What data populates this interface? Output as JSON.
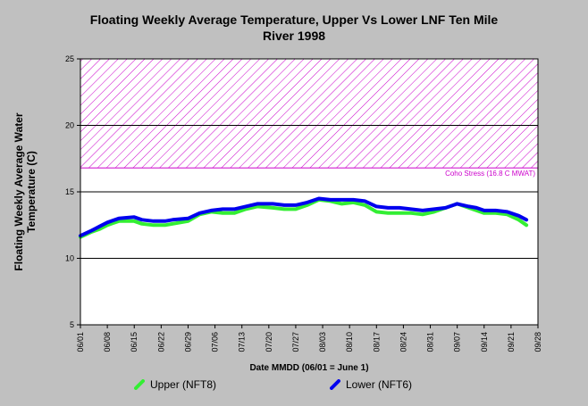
{
  "chart_data": {
    "type": "line",
    "title_line1": "Floating Weekly Average Temperature, Upper Vs Lower LNF Ten Mile",
    "title_line2": "River 1998",
    "ylabel": "Floating Weekly Average Water\nTemperature (C)",
    "xlabel": "Date MMDD (06/01 = June 1)",
    "ylim": [
      5,
      25
    ],
    "yticks": [
      "5",
      "10",
      "15",
      "20",
      "25"
    ],
    "xticks": [
      "06/01",
      "06/08",
      "06/15",
      "06/22",
      "06/29",
      "07/06",
      "07/13",
      "07/20",
      "07/27",
      "08/03",
      "08/10",
      "08/17",
      "08/24",
      "08/31",
      "09/07",
      "09/14",
      "09/21",
      "09/28"
    ],
    "xrange_days": [
      0,
      119
    ],
    "threshold": {
      "value": 16.8,
      "label": "Coho Stress (16.8 C MWAT)",
      "color": "#cc00cc"
    },
    "series": [
      {
        "name": "Upper (NFT8)",
        "color": "#33ee33",
        "x": [
          0,
          3,
          5,
          7,
          10,
          14,
          16,
          19,
          22,
          24,
          28,
          31,
          34,
          37,
          40,
          43,
          46,
          50,
          53,
          56,
          59,
          62,
          65,
          68,
          71,
          74,
          77,
          80,
          83,
          86,
          89,
          92,
          95,
          98,
          101,
          103,
          105,
          108,
          111,
          114,
          116
        ],
        "y": [
          11.6,
          12.0,
          12.2,
          12.5,
          12.8,
          12.8,
          12.6,
          12.5,
          12.5,
          12.6,
          12.8,
          13.3,
          13.5,
          13.4,
          13.4,
          13.7,
          13.9,
          13.8,
          13.7,
          13.7,
          14.0,
          14.4,
          14.3,
          14.1,
          14.2,
          14.0,
          13.5,
          13.4,
          13.4,
          13.4,
          13.3,
          13.5,
          13.8,
          14.1,
          13.8,
          13.6,
          13.4,
          13.4,
          13.3,
          12.9,
          12.5
        ]
      },
      {
        "name": "Lower (NFT6)",
        "color": "#0000ee",
        "x": [
          0,
          3,
          5,
          7,
          10,
          14,
          16,
          19,
          22,
          24,
          28,
          31,
          34,
          37,
          40,
          43,
          46,
          50,
          53,
          56,
          59,
          62,
          65,
          68,
          71,
          74,
          77,
          80,
          83,
          86,
          89,
          92,
          95,
          98,
          101,
          103,
          105,
          108,
          111,
          114,
          116
        ],
        "y": [
          11.7,
          12.1,
          12.4,
          12.7,
          13.0,
          13.1,
          12.9,
          12.8,
          12.8,
          12.9,
          13.0,
          13.4,
          13.6,
          13.7,
          13.7,
          13.9,
          14.1,
          14.1,
          14.0,
          14.0,
          14.2,
          14.5,
          14.4,
          14.4,
          14.4,
          14.3,
          13.9,
          13.8,
          13.8,
          13.7,
          13.6,
          13.7,
          13.8,
          14.1,
          13.9,
          13.8,
          13.6,
          13.6,
          13.5,
          13.2,
          12.9
        ]
      }
    ]
  }
}
